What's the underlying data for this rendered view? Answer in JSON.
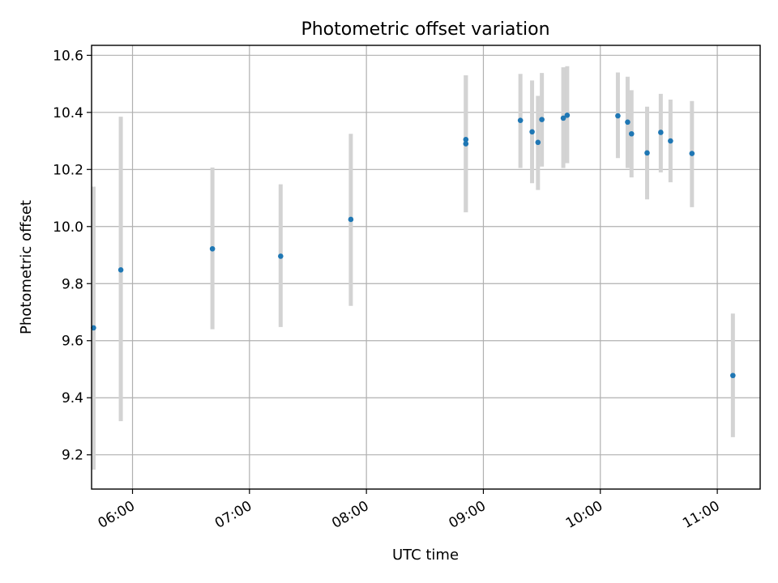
{
  "chart_data": {
    "type": "scatter",
    "title": "Photometric offset variation",
    "xlabel": "UTC time",
    "ylabel": "Photometric offset",
    "grid": true,
    "colors": {
      "point": "#1f77b4",
      "errorbar": "#d3d3d3"
    },
    "xlim": [
      "05:39",
      "11:22"
    ],
    "ylim": [
      9.08,
      10.635
    ],
    "x_ticks": [
      "06:00",
      "07:00",
      "08:00",
      "09:00",
      "10:00",
      "11:00"
    ],
    "y_ticks": [
      "9.2",
      "9.4",
      "9.6",
      "9.8",
      "10.0",
      "10.2",
      "10.4",
      "10.6"
    ],
    "points": [
      {
        "x": "05:40",
        "y": 9.645,
        "ylow": 9.148,
        "yhigh": 10.14
      },
      {
        "x": "05:54",
        "y": 9.848,
        "ylow": 9.318,
        "yhigh": 10.385
      },
      {
        "x": "06:41",
        "y": 9.922,
        "ylow": 9.64,
        "yhigh": 10.207
      },
      {
        "x": "07:16",
        "y": 9.896,
        "ylow": 9.648,
        "yhigh": 10.148
      },
      {
        "x": "07:52",
        "y": 10.025,
        "ylow": 9.722,
        "yhigh": 10.325
      },
      {
        "x": "08:51",
        "y": 10.305,
        "ylow": 10.05,
        "yhigh": 10.53
      },
      {
        "x": "08:51",
        "y": 10.29,
        "ylow": 10.05,
        "yhigh": 10.53
      },
      {
        "x": "09:19",
        "y": 10.372,
        "ylow": 10.205,
        "yhigh": 10.535
      },
      {
        "x": "09:25",
        "y": 10.332,
        "ylow": 10.152,
        "yhigh": 10.512
      },
      {
        "x": "09:28",
        "y": 10.295,
        "ylow": 10.128,
        "yhigh": 10.458
      },
      {
        "x": "09:30",
        "y": 10.375,
        "ylow": 10.21,
        "yhigh": 10.538
      },
      {
        "x": "09:41",
        "y": 10.38,
        "ylow": 10.205,
        "yhigh": 10.558
      },
      {
        "x": "09:43",
        "y": 10.39,
        "ylow": 10.222,
        "yhigh": 10.562
      },
      {
        "x": "10:09",
        "y": 10.388,
        "ylow": 10.24,
        "yhigh": 10.54
      },
      {
        "x": "10:14",
        "y": 10.366,
        "ylow": 10.205,
        "yhigh": 10.525
      },
      {
        "x": "10:16",
        "y": 10.325,
        "ylow": 10.172,
        "yhigh": 10.478
      },
      {
        "x": "10:24",
        "y": 10.258,
        "ylow": 10.095,
        "yhigh": 10.42
      },
      {
        "x": "10:31",
        "y": 10.33,
        "ylow": 10.19,
        "yhigh": 10.465
      },
      {
        "x": "10:36",
        "y": 10.3,
        "ylow": 10.155,
        "yhigh": 10.445
      },
      {
        "x": "10:47",
        "y": 10.256,
        "ylow": 10.068,
        "yhigh": 10.44
      },
      {
        "x": "11:08",
        "y": 9.478,
        "ylow": 9.262,
        "yhigh": 9.695
      }
    ]
  }
}
